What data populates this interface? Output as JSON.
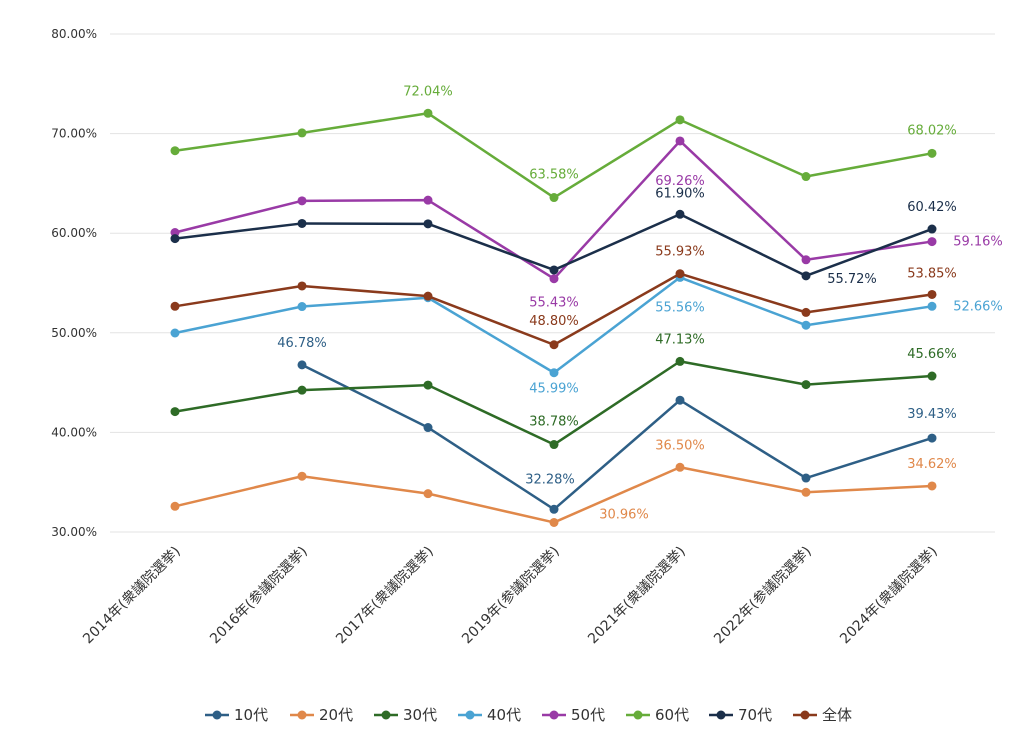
{
  "chart_data": {
    "type": "line",
    "title": "",
    "xlabel": "",
    "ylabel": "",
    "ylim": [
      30,
      80
    ],
    "yticks": [
      {
        "value": 30,
        "label": "30.00%"
      },
      {
        "value": 40,
        "label": "40.00%"
      },
      {
        "value": 50,
        "label": "50.00%"
      },
      {
        "value": 60,
        "label": "60.00%"
      },
      {
        "value": 70,
        "label": "70.00%"
      },
      {
        "value": 80,
        "label": "80.00%"
      }
    ],
    "grid": true,
    "legend_position": "bottom",
    "categories": [
      "2014年(衆議院選挙)",
      "2016年(参議院選挙)",
      "2017年(衆議院選挙)",
      "2019年(参議院選挙)",
      "2021年(衆議院選挙)",
      "2022年(参議院選挙)",
      "2024年(衆議院選挙)"
    ],
    "series": [
      {
        "name": "10代",
        "color": "#2e5f86",
        "values": [
          null,
          46.78,
          40.49,
          32.28,
          43.23,
          35.42,
          39.43
        ],
        "labels": [
          null,
          "46.78%",
          null,
          "32.28%",
          null,
          null,
          "39.43%"
        ]
      },
      {
        "name": "20代",
        "color": "#e0884a",
        "values": [
          32.58,
          35.6,
          33.85,
          30.96,
          36.5,
          33.99,
          34.62
        ],
        "labels": [
          null,
          null,
          null,
          "30.96%",
          "36.50%",
          null,
          "34.62%"
        ]
      },
      {
        "name": "30代",
        "color": "#2e6b26",
        "values": [
          42.09,
          44.24,
          44.75,
          38.78,
          47.13,
          44.8,
          45.66
        ],
        "labels": [
          null,
          null,
          null,
          "38.78%",
          "47.13%",
          null,
          "45.66%"
        ]
      },
      {
        "name": "40代",
        "color": "#4aa3d3",
        "values": [
          49.98,
          52.64,
          53.52,
          45.99,
          55.56,
          50.76,
          52.66
        ],
        "labels": [
          null,
          null,
          null,
          "45.99%",
          "55.56%",
          null,
          "52.66%"
        ]
      },
      {
        "name": "50代",
        "color": "#993aa6",
        "values": [
          60.07,
          63.25,
          63.32,
          55.43,
          69.26,
          57.33,
          59.16
        ],
        "labels": [
          null,
          null,
          null,
          "55.43%",
          "69.26%",
          null,
          "59.16%"
        ]
      },
      {
        "name": "60代",
        "color": "#66ac3a",
        "values": [
          68.28,
          70.07,
          72.04,
          63.58,
          71.38,
          65.69,
          68.02
        ],
        "labels": [
          null,
          null,
          "72.04%",
          "63.58%",
          null,
          null,
          "68.02%"
        ]
      },
      {
        "name": "70代",
        "color": "#1b2f4a",
        "values": [
          59.46,
          60.98,
          60.94,
          56.31,
          61.9,
          55.72,
          60.42
        ],
        "labels": [
          null,
          null,
          null,
          null,
          "61.90%",
          "55.72%",
          "60.42%"
        ]
      },
      {
        "name": "全体",
        "color": "#8a3a1c",
        "values": [
          52.66,
          54.7,
          53.68,
          48.8,
          55.93,
          52.05,
          53.85
        ],
        "labels": [
          null,
          null,
          null,
          "48.80%",
          "55.93%",
          null,
          "53.85%"
        ]
      }
    ]
  }
}
